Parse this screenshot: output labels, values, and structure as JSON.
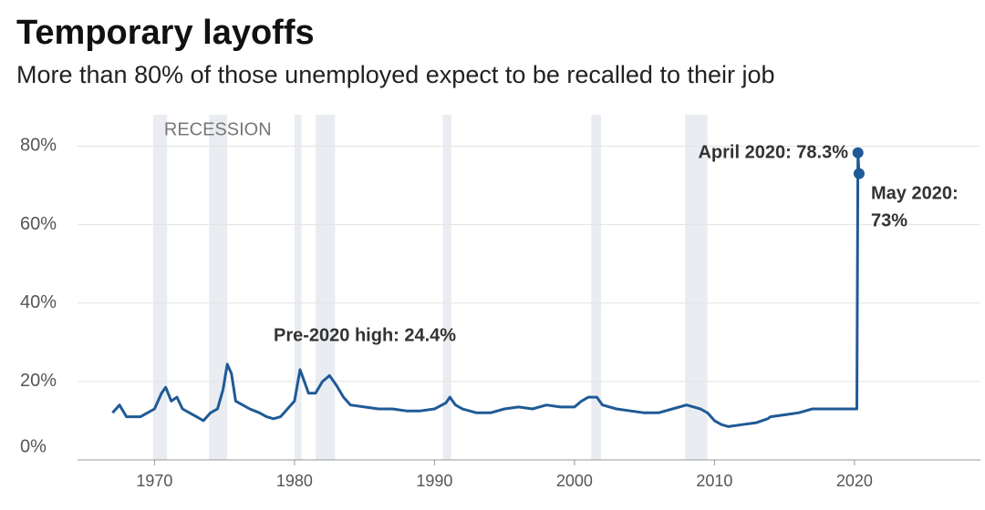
{
  "chart_data": {
    "type": "line",
    "title": "Temporary layoffs",
    "subtitle": "More than 80% of those unemployed expect to be recalled to their job",
    "recession_label": "RECESSION",
    "recessions": [
      [
        1969.9,
        1970.9
      ],
      [
        1973.9,
        1975.2
      ],
      [
        1980.0,
        1980.5
      ],
      [
        1981.5,
        1982.9
      ],
      [
        1990.6,
        1991.2
      ],
      [
        2001.2,
        2001.9
      ],
      [
        2007.9,
        2009.5
      ]
    ],
    "x": [
      1967.0,
      1967.5,
      1968.0,
      1969.0,
      1969.5,
      1970.0,
      1970.5,
      1970.8,
      1971.2,
      1971.6,
      1972.0,
      1972.5,
      1973.0,
      1973.5,
      1974.0,
      1974.5,
      1974.9,
      1975.2,
      1975.5,
      1975.8,
      1976.3,
      1976.8,
      1977.5,
      1978.0,
      1978.5,
      1979.0,
      1979.5,
      1980.0,
      1980.4,
      1980.7,
      1981.0,
      1981.5,
      1982.0,
      1982.5,
      1983.0,
      1983.5,
      1984.0,
      1985.0,
      1986.0,
      1987.0,
      1988.0,
      1989.0,
      1990.0,
      1990.8,
      1991.1,
      1991.5,
      1992.0,
      1993.0,
      1994.0,
      1995.0,
      1996.0,
      1997.0,
      1998.0,
      1999.0,
      2000.0,
      2000.5,
      2001.0,
      2001.6,
      2002.0,
      2003.0,
      2004.0,
      2005.0,
      2006.0,
      2007.0,
      2008.0,
      2009.0,
      2009.5,
      2010.0,
      2010.5,
      2011.0,
      2012.0,
      2013.0,
      2013.8,
      2014.0,
      2015.0,
      2016.0,
      2017.0,
      2018.0,
      2019.0,
      2020.0,
      2020.17,
      2020.25,
      2020.33
    ],
    "series": [
      {
        "name": "Temporary layoffs",
        "color": "#1f5a96",
        "values": [
          12,
          14,
          11,
          11,
          12,
          13,
          17,
          18.5,
          15,
          16,
          13,
          12,
          11,
          10,
          12,
          13,
          18,
          24.4,
          22,
          15,
          14,
          13,
          12,
          11,
          10.5,
          11,
          13,
          15,
          23,
          20,
          17,
          17,
          20,
          21.5,
          19,
          16,
          14,
          13.5,
          13,
          13,
          12.5,
          12.5,
          13,
          14.5,
          16,
          14,
          13,
          12,
          12,
          13,
          13.5,
          13,
          14,
          13.5,
          13.5,
          15,
          16,
          16,
          14,
          13,
          12.5,
          12,
          12,
          13,
          14,
          13,
          12,
          10,
          9,
          8.5,
          9,
          9.5,
          10.5,
          11,
          11.5,
          12,
          13,
          13,
          13,
          13,
          13,
          78.3,
          73
        ]
      }
    ],
    "annotations": [
      "Pre-2020 high: 24.4%",
      "April 2020: 78.3%",
      "May 2020:",
      "73%"
    ],
    "xlim": [
      1964.5,
      2029
    ],
    "xticks": [
      1970,
      1980,
      1990,
      2000,
      2010,
      2020
    ],
    "ylim": [
      0,
      88
    ],
    "yticks": [
      {
        "value": 0,
        "label": "0%"
      },
      {
        "value": 20,
        "label": "20%"
      },
      {
        "value": 40,
        "label": "40%"
      },
      {
        "value": 60,
        "label": "60%"
      },
      {
        "value": 80,
        "label": "80%"
      }
    ],
    "grid": true
  }
}
